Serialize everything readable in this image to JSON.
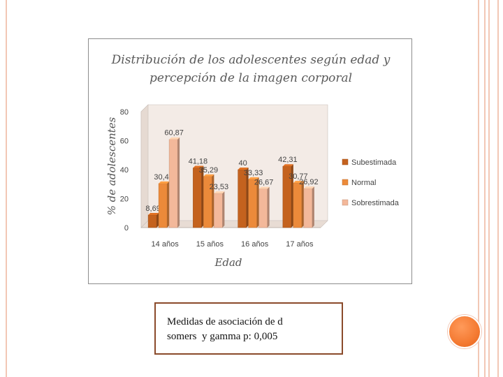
{
  "chart_data": {
    "type": "bar",
    "title_lines": [
      "Distribución de los adolescentes según edad y",
      "percepción de la imagen corporal"
    ],
    "xlabel": "Edad",
    "ylabel": "% de adolescentes",
    "categories": [
      "14 años",
      "15 años",
      "16 años",
      "17 años"
    ],
    "ylim": [
      0,
      80
    ],
    "yticks": [
      0,
      20,
      40,
      60,
      80
    ],
    "grid": false,
    "legend_position": "right",
    "series": [
      {
        "name": "Subestimada",
        "values": [
          8.69,
          41.18,
          40,
          42.31
        ],
        "labels": [
          "8,69",
          "41,18",
          "40",
          "42,31"
        ],
        "color": "#c4621e"
      },
      {
        "name": "Normal",
        "values": [
          30.43,
          35.29,
          33.33,
          30.77
        ],
        "labels": [
          "30,43",
          "35,29",
          "33,33",
          "30,77"
        ],
        "color": "#ec8a3a"
      },
      {
        "name": "Sobrestimada",
        "values": [
          60.87,
          23.53,
          26.67,
          26.92
        ],
        "labels": [
          "60,87",
          "23,53",
          "26,67",
          "26,92"
        ],
        "color": "#f3b89a"
      }
    ]
  },
  "note": {
    "line1": "Medidas de asociación de d",
    "line2": "somers  y gamma p: 0,005"
  },
  "colors": {
    "border": "#f2c7b5",
    "accent": "#f47a32"
  }
}
